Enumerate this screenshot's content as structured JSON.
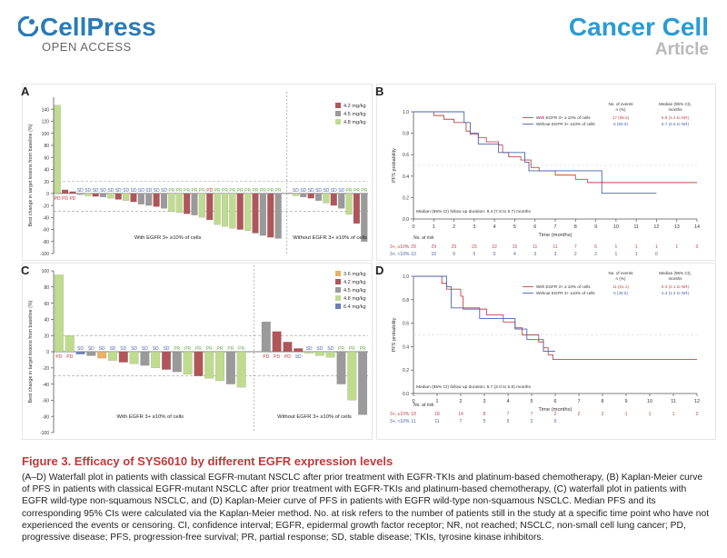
{
  "header": {
    "publisher": "CellPress",
    "access": "OPEN ACCESS",
    "journal": "Cancer Cell",
    "article_type": "Article",
    "colors": {
      "cellpress": "#2a7ab8",
      "journal": "#2a9bd6",
      "article": "#b8b8b8",
      "caption_title": "#c0383b"
    }
  },
  "panels": {
    "a": "A",
    "b": "B",
    "c": "C",
    "d": "D"
  },
  "caption": {
    "title": "Figure 3.  Efficacy of SYS6010 by different EGFR expression levels",
    "body": "(A–D) Waterfall plot in patients with classical EGFR-mutant NSCLC after prior treatment with EGFR-TKIs and platinum-based chemotherapy, (B) Kaplan-Meier curve of PFS in patients with classical EGFR-mutant NSCLC after prior treatment with EGFR-TKIs and platinum-based chemotherapy, (C) waterfall plot in patients with EGFR wild-type non-squamous NSCLC, and (D) Kaplan-Meier curve of PFS in patients with EGFR wild-type non-squamous NSCLC. Median PFS and its corresponding 95% CIs were calculated via the Kaplan-Meier method. No. at risk refers to the number of patients still in the study at a specific time point who have not experienced the events or censoring. CI, confidence interval; EGFR, epidermal growth factor receptor; NR, not reached; NSCLC, non-small cell lung cancer; PD, progressive disease; PFS, progression-free survival; PR, partial response; SD, stable disease; TKIs, tyrosine kinase inhibitors."
  },
  "chart_data": [
    {
      "id": "A",
      "type": "bar",
      "ylabel": "Best change in target lesions from baseline (%)",
      "ylim": [
        -100,
        160
      ],
      "yticks": [
        -100,
        -80,
        -60,
        -40,
        -20,
        0,
        20,
        40,
        60,
        80,
        100,
        120,
        140
      ],
      "reference_lines": [
        20,
        -30
      ],
      "legend": {
        "placement": "top-right",
        "entries": [
          {
            "label": "4.2 mg/kg",
            "color": "#b05558"
          },
          {
            "label": "4.5 mg/kg",
            "color": "#9a9a9a"
          },
          {
            "label": "4.8 mg/kg",
            "color": "#bfdc8e"
          }
        ]
      },
      "groups": [
        {
          "label": "With EGFR 3+ ≥10% of cells",
          "bars": [
            {
              "v": 147,
              "d": "4.8 mg/kg",
              "r": "PD"
            },
            {
              "v": 6,
              "d": "4.2 mg/kg",
              "r": "PD"
            },
            {
              "v": 3,
              "d": "4.2 mg/kg",
              "r": "PD"
            },
            {
              "v": -2,
              "d": "4.5 mg/kg",
              "r": "SD"
            },
            {
              "v": -4,
              "d": "4.8 mg/kg",
              "r": "SD"
            },
            {
              "v": -5,
              "d": "4.2 mg/kg",
              "r": "SD"
            },
            {
              "v": -6,
              "d": "4.5 mg/kg",
              "r": "SD"
            },
            {
              "v": -8,
              "d": "4.8 mg/kg",
              "r": "SD"
            },
            {
              "v": -10,
              "d": "4.2 mg/kg",
              "r": "SD"
            },
            {
              "v": -12,
              "d": "4.8 mg/kg",
              "r": "SD"
            },
            {
              "v": -14,
              "d": "4.2 mg/kg",
              "r": "SD"
            },
            {
              "v": -18,
              "d": "4.5 mg/kg",
              "r": "SD"
            },
            {
              "v": -20,
              "d": "4.5 mg/kg",
              "r": "SD"
            },
            {
              "v": -22,
              "d": "4.2 mg/kg",
              "r": "SD"
            },
            {
              "v": -25,
              "d": "4.5 mg/kg",
              "r": "SD"
            },
            {
              "v": -30,
              "d": "4.8 mg/kg",
              "r": "PR"
            },
            {
              "v": -32,
              "d": "4.8 mg/kg",
              "r": "PR"
            },
            {
              "v": -34,
              "d": "4.2 mg/kg",
              "r": "PR"
            },
            {
              "v": -36,
              "d": "4.5 mg/kg",
              "r": "PR"
            },
            {
              "v": -40,
              "d": "4.8 mg/kg",
              "r": "PR"
            },
            {
              "v": -44,
              "d": "4.2 mg/kg",
              "r": "PD"
            },
            {
              "v": -52,
              "d": "4.8 mg/kg",
              "r": "PR"
            },
            {
              "v": -55,
              "d": "4.8 mg/kg",
              "r": "PR"
            },
            {
              "v": -58,
              "d": "4.8 mg/kg",
              "r": "PR"
            },
            {
              "v": -60,
              "d": "4.2 mg/kg",
              "r": "PR"
            },
            {
              "v": -62,
              "d": "4.8 mg/kg",
              "r": "PR"
            },
            {
              "v": -66,
              "d": "4.2 mg/kg",
              "r": "PR"
            },
            {
              "v": -70,
              "d": "4.5 mg/kg",
              "r": "PR"
            },
            {
              "v": -73,
              "d": "4.2 mg/kg",
              "r": "PR"
            },
            {
              "v": -75,
              "d": "4.5 mg/kg",
              "r": "PR"
            }
          ]
        },
        {
          "label": "Without EGFR 3+ ≥10% of cells",
          "bars": [
            {
              "v": -4,
              "d": "4.8 mg/kg",
              "r": "SD"
            },
            {
              "v": -6,
              "d": "4.5 mg/kg",
              "r": "SD"
            },
            {
              "v": -8,
              "d": "4.2 mg/kg",
              "r": "SD"
            },
            {
              "v": -12,
              "d": "4.5 mg/kg",
              "r": "SD"
            },
            {
              "v": -16,
              "d": "4.8 mg/kg",
              "r": "SD"
            },
            {
              "v": -20,
              "d": "4.2 mg/kg",
              "r": "SD"
            },
            {
              "v": -25,
              "d": "4.5 mg/kg",
              "r": "SD"
            },
            {
              "v": -35,
              "d": "4.8 mg/kg",
              "r": "PR"
            },
            {
              "v": -50,
              "d": "4.2 mg/kg",
              "r": "PR"
            },
            {
              "v": -80,
              "d": "4.5 mg/kg",
              "r": "PR"
            }
          ]
        }
      ]
    },
    {
      "id": "B",
      "type": "line",
      "xlabel": "Time (months)",
      "ylabel": "PFS probability",
      "xlim": [
        0,
        14
      ],
      "xticks": [
        0,
        1,
        2,
        3,
        4,
        5,
        6,
        7,
        8,
        9,
        10,
        11,
        12,
        13,
        14
      ],
      "ylim": [
        0,
        1
      ],
      "yticks": [
        0,
        0.2,
        0.4,
        0.6,
        0.8,
        1.0
      ],
      "header": {
        "events": "No. of events\nn (%)",
        "median": "Median (95% CI),\nmonths"
      },
      "series": [
        {
          "name": "With EGFR 3+ ≥ 10% of cells",
          "color": "#c0484a",
          "events": "17 (58.6)",
          "median": "5.8 (4.2 to NR)",
          "steps": [
            [
              0,
              1.0
            ],
            [
              1.0,
              0.965
            ],
            [
              1.5,
              0.93
            ],
            [
              2.0,
              0.9
            ],
            [
              2.6,
              0.82
            ],
            [
              2.8,
              0.79
            ],
            [
              3.2,
              0.76
            ],
            [
              3.6,
              0.72
            ],
            [
              4.2,
              0.69
            ],
            [
              4.4,
              0.62
            ],
            [
              4.7,
              0.58
            ],
            [
              5.3,
              0.55
            ],
            [
              5.8,
              0.48
            ],
            [
              6.2,
              0.45
            ],
            [
              7.0,
              0.41
            ],
            [
              8.0,
              0.37
            ],
            [
              8.6,
              0.34
            ],
            [
              14.0,
              0.34
            ]
          ]
        },
        {
          "name": "Without EGFR 3+ ≥10% of cells",
          "color": "#4a63a8",
          "events": "5 (50.0)",
          "median": "5.7 (2.5 to NR)",
          "steps": [
            [
              0,
              1.0
            ],
            [
              2.5,
              0.9
            ],
            [
              2.8,
              0.8
            ],
            [
              3.2,
              0.7
            ],
            [
              4.2,
              0.62
            ],
            [
              5.5,
              0.53
            ],
            [
              5.7,
              0.45
            ],
            [
              9.3,
              0.24
            ],
            [
              12.0,
              0.24
            ]
          ]
        }
      ],
      "footnote": "Median (95% CI) follow up duration: 9.4 (7.6 to 9.7) months",
      "at_risk": {
        "title": "No. at risk",
        "times": [
          0,
          1,
          2,
          3,
          4,
          5,
          6,
          7,
          8,
          9,
          10,
          11,
          12,
          13,
          14
        ],
        "rows": [
          {
            "label": "3+, ≥10%",
            "color": "#c0484a",
            "values": [
              "29",
              "29",
              "25",
              "23",
              "22",
              "15",
              "11",
              "11",
              "7",
              "6",
              "1",
              "1",
              "1",
              "1",
              "0"
            ]
          },
          {
            "label": "3+, <10%",
            "color": "#4a63a8",
            "values": [
              "10",
              "10",
              "9",
              "5",
              "5",
              "4",
              "3",
              "3",
              "2",
              "2",
              "1",
              "1",
              "0",
              "",
              ""
            ]
          }
        ]
      }
    },
    {
      "id": "C",
      "type": "bar",
      "ylabel": "Best change in target lesions from baseline (%)",
      "ylim": [
        -100,
        100
      ],
      "yticks": [
        -100,
        -80,
        -60,
        -40,
        -20,
        0,
        20,
        40,
        60,
        80,
        100
      ],
      "reference_lines": [
        20,
        -30
      ],
      "legend": {
        "placement": "top-right",
        "entries": [
          {
            "label": "3.6 mg/kg",
            "color": "#e8b166"
          },
          {
            "label": "4.2 mg/kg",
            "color": "#b05558"
          },
          {
            "label": "4.5 mg/kg",
            "color": "#9a9a9a"
          },
          {
            "label": "4.8 mg/kg",
            "color": "#bfdc8e"
          },
          {
            "label": "6.4 mg/kg",
            "color": "#6a7fb8"
          }
        ]
      },
      "groups": [
        {
          "label": "With EGFR 3+ ≥10% of cells",
          "bars": [
            {
              "v": 95,
              "d": "4.8 mg/kg",
              "r": "PD"
            },
            {
              "v": 20,
              "d": "4.8 mg/kg",
              "r": "PD"
            },
            {
              "v": -3,
              "d": "6.4 mg/kg",
              "r": "SD"
            },
            {
              "v": -5,
              "d": "4.5 mg/kg",
              "r": "SD"
            },
            {
              "v": -8,
              "d": "3.6 mg/kg",
              "r": "SD"
            },
            {
              "v": -11,
              "d": "4.8 mg/kg",
              "r": "SD"
            },
            {
              "v": -13,
              "d": "4.2 mg/kg",
              "r": "SD"
            },
            {
              "v": -15,
              "d": "4.8 mg/kg",
              "r": "SD"
            },
            {
              "v": -17,
              "d": "4.5 mg/kg",
              "r": "SD"
            },
            {
              "v": -20,
              "d": "4.8 mg/kg",
              "r": "SD"
            },
            {
              "v": -22,
              "d": "4.2 mg/kg",
              "r": "SD"
            },
            {
              "v": -25,
              "d": "4.5 mg/kg",
              "r": "PR"
            },
            {
              "v": -28,
              "d": "4.8 mg/kg",
              "r": "PR"
            },
            {
              "v": -30,
              "d": "4.2 mg/kg",
              "r": "PR"
            },
            {
              "v": -33,
              "d": "4.8 mg/kg",
              "r": "PR"
            },
            {
              "v": -36,
              "d": "4.8 mg/kg",
              "r": "PR"
            },
            {
              "v": -40,
              "d": "4.5 mg/kg",
              "r": "PR"
            },
            {
              "v": -44,
              "d": "4.8 mg/kg",
              "r": "PR"
            }
          ]
        },
        {
          "label": "Without EGFR 3+ ≥10% of cells",
          "bars": [
            {
              "v": 37,
              "d": "4.5 mg/kg",
              "r": "PD"
            },
            {
              "v": 25,
              "d": "4.2 mg/kg",
              "r": "PD"
            },
            {
              "v": 12,
              "d": "4.2 mg/kg",
              "r": "PD"
            },
            {
              "v": 4,
              "d": "4.2 mg/kg",
              "r": "SD"
            },
            {
              "v": -2,
              "d": "4.8 mg/kg",
              "r": "SD"
            },
            {
              "v": -5,
              "d": "4.8 mg/kg",
              "r": "SD"
            },
            {
              "v": -7,
              "d": "4.8 mg/kg",
              "r": "SD"
            },
            {
              "v": -40,
              "d": "4.5 mg/kg",
              "r": "PR"
            },
            {
              "v": -60,
              "d": "4.8 mg/kg",
              "r": "PR"
            },
            {
              "v": -78,
              "d": "4.5 mg/kg",
              "r": "PR"
            }
          ]
        }
      ]
    },
    {
      "id": "D",
      "type": "line",
      "xlabel": "Time (months)",
      "ylabel": "PFS probability",
      "xlim": [
        0,
        12
      ],
      "xticks": [
        0,
        1,
        2,
        3,
        4,
        5,
        6,
        7,
        8,
        9,
        10,
        11,
        12
      ],
      "ylim": [
        0,
        1
      ],
      "yticks": [
        0,
        0.2,
        0.4,
        0.6,
        0.8,
        1.0
      ],
      "header": {
        "events": "No. of events\nn (%)",
        "median": "Median (95% CI),\nmonths"
      },
      "series": [
        {
          "name": "With EGFR 3+ ≥ 10% of cells",
          "color": "#c0484a",
          "events": "11 (61.1)",
          "median": "5.3 (2.1 to NR)",
          "steps": [
            [
              0,
              1.0
            ],
            [
              1.2,
              0.94
            ],
            [
              1.4,
              0.89
            ],
            [
              2.0,
              0.83
            ],
            [
              2.1,
              0.72
            ],
            [
              3.1,
              0.67
            ],
            [
              3.8,
              0.61
            ],
            [
              4.3,
              0.56
            ],
            [
              4.6,
              0.5
            ],
            [
              5.3,
              0.44
            ],
            [
              5.5,
              0.39
            ],
            [
              5.7,
              0.33
            ],
            [
              5.9,
              0.29
            ],
            [
              12.0,
              0.29
            ]
          ]
        },
        {
          "name": "Without EGFR 3+ ≥10% of cells",
          "color": "#4a63a8",
          "events": "5 (45.5)",
          "median": "4.3 (1.4 to NR)",
          "steps": [
            [
              0,
              1.0
            ],
            [
              1.4,
              0.91
            ],
            [
              1.6,
              0.73
            ],
            [
              2.8,
              0.64
            ],
            [
              4.3,
              0.55
            ],
            [
              4.8,
              0.46
            ],
            [
              5.5,
              0.36
            ],
            [
              6.0,
              0.36
            ]
          ]
        }
      ],
      "footnote": "Median (95% CI) follow up duration: 5.7 (3.0 to 5.8) months",
      "at_risk": {
        "title": "No. at risk",
        "times": [
          0,
          1,
          2,
          3,
          4,
          5,
          6,
          7,
          8,
          9,
          10,
          11,
          12
        ],
        "rows": [
          {
            "label": "3+, ≥10%",
            "color": "#c0484a",
            "values": [
              "18",
              "18",
              "14",
              "8",
              "7",
              "7",
              "2",
              "2",
              "2",
              "1",
              "1",
              "1",
              "0"
            ]
          },
          {
            "label": "3+, <10%",
            "color": "#4a63a8",
            "values": [
              "11",
              "11",
              "7",
              "5",
              "5",
              "2",
              "0",
              "",
              "",
              "",
              "",
              "",
              ""
            ]
          }
        ]
      }
    }
  ]
}
